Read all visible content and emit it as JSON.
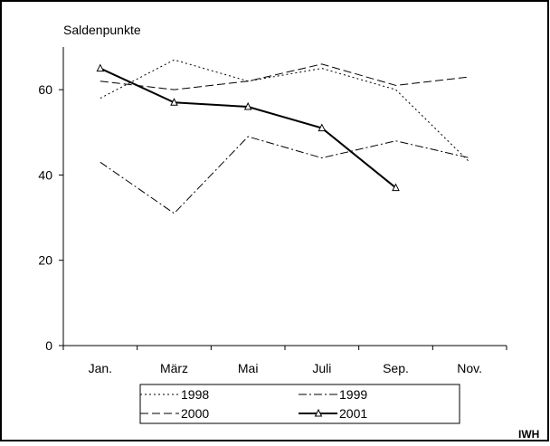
{
  "chart_data": {
    "type": "line",
    "y_label": "Saldenpunkte",
    "categories": [
      "Jan.",
      "März",
      "Mai",
      "Juli",
      "Sep.",
      "Nov."
    ],
    "series": [
      {
        "name": "1998",
        "color": "#000000",
        "dash": "2,3",
        "values": [
          58,
          67,
          62,
          65,
          60,
          43
        ]
      },
      {
        "name": "1999",
        "color": "#000000",
        "dash": "9,3,2,3",
        "values": [
          43,
          31,
          49,
          44,
          48,
          44
        ]
      },
      {
        "name": "2000",
        "color": "#000000",
        "dash": "9,4",
        "values": [
          62,
          60,
          62,
          66,
          61,
          63
        ]
      },
      {
        "name": "2001",
        "color": "#000000",
        "dash": "none",
        "marker": "triangle",
        "values": [
          65,
          57,
          56,
          51,
          37,
          null
        ]
      }
    ],
    "ylim": [
      0,
      70
    ],
    "yticks": [
      0,
      20,
      40,
      60
    ],
    "source": "IWH"
  }
}
